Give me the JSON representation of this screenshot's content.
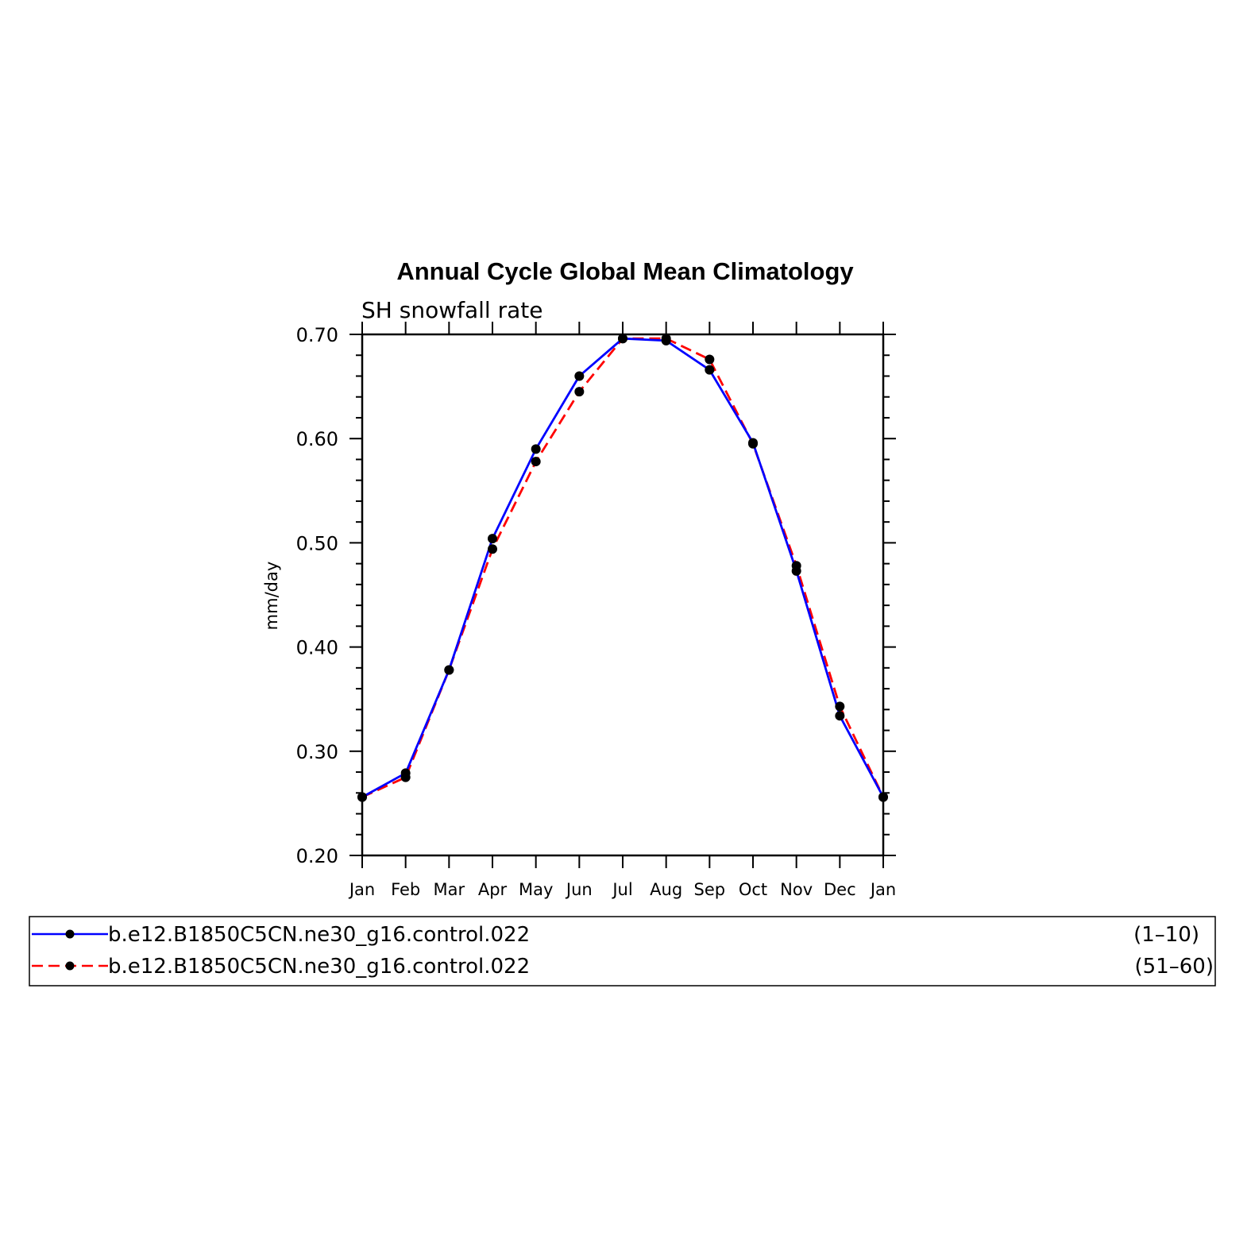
{
  "chart_data": {
    "type": "line",
    "title": "Annual Cycle Global Mean Climatology",
    "subtitle": "SH snowfall rate",
    "ylabel": "mm/day",
    "xlabel": "",
    "ylim": [
      0.2,
      0.7
    ],
    "yticks": [
      "0.20",
      "0.30",
      "0.40",
      "0.50",
      "0.60",
      "0.70"
    ],
    "categories": [
      "Jan",
      "Feb",
      "Mar",
      "Apr",
      "May",
      "Jun",
      "Jul",
      "Aug",
      "Sep",
      "Oct",
      "Nov",
      "Dec",
      "Jan"
    ],
    "grid": false,
    "legend_position": "bottom",
    "series": [
      {
        "name": "b.e12.B1850C5CN.ne30_g16.control.022",
        "years": "(1–10)",
        "color": "#0000ff",
        "dash": "solid",
        "values": [
          0.256,
          0.279,
          0.378,
          0.504,
          0.59,
          0.66,
          0.696,
          0.694,
          0.666,
          0.596,
          0.473,
          0.334,
          0.256
        ]
      },
      {
        "name": "b.e12.B1850C5CN.ne30_g16.control.022",
        "years": "(51–60)",
        "color": "#ff0000",
        "dash": "dashed",
        "values": [
          0.256,
          0.275,
          0.378,
          0.494,
          0.578,
          0.645,
          0.696,
          0.696,
          0.676,
          0.595,
          0.478,
          0.343,
          0.256
        ]
      }
    ]
  }
}
